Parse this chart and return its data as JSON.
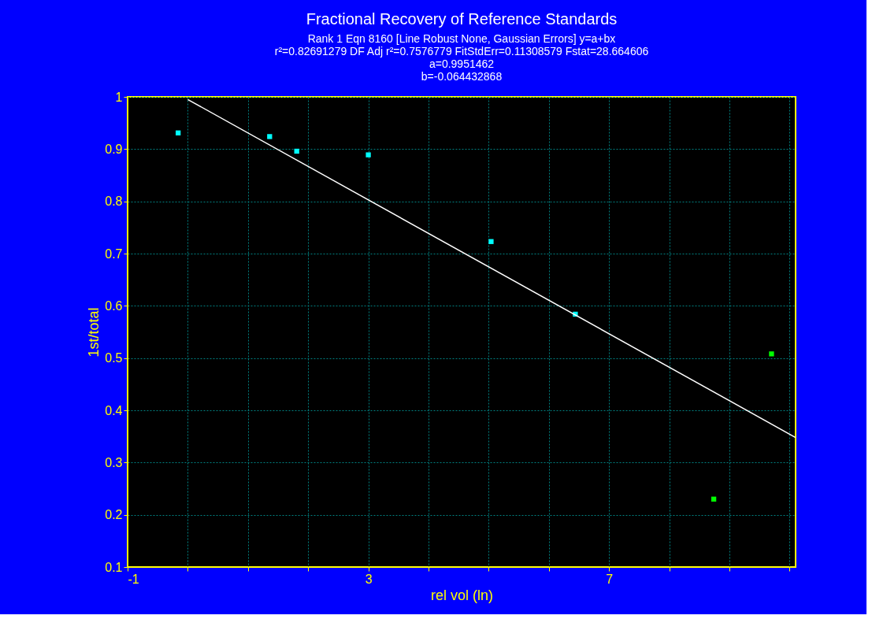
{
  "chart_data": {
    "type": "scatter",
    "title": "Fractional Recovery of Reference Standards",
    "subtitle": "Rank 1  Eqn 8160  [Line Robust None, Gaussian Errors] y=a+bx",
    "annotations": [
      "r²=0.82691279  DF Adj r²=0.7576779  FitStdErr=0.11308579  Fstat=28.664606",
      "a=0.9951462",
      "b=-0.064432868"
    ],
    "xlabel": "rel vol (ln)",
    "ylabel": "1st/total",
    "series": [
      {
        "color": "#00ffff",
        "x": [
          -0.16,
          1.36,
          1.81,
          3.0,
          5.04,
          6.44
        ],
        "values": [
          0.931,
          0.924,
          0.896,
          0.889,
          0.723,
          0.584
        ]
      },
      {
        "color": "#00ff00",
        "x": [
          8.74,
          9.7
        ],
        "values": [
          0.23,
          0.508
        ]
      },
      {
        "type": "line",
        "marker": "none",
        "color": "#ffffff",
        "x": [
          0,
          10.1
        ],
        "values": [
          0.995,
          0.348
        ]
      }
    ],
    "marker": "square",
    "xlim": [
      -1,
      10.1
    ],
    "ylim": [
      0.1,
      1
    ],
    "xticks": [
      -1,
      {
        "value": 0,
        "label": null
      },
      {
        "value": 1,
        "label": null
      },
      {
        "value": 2,
        "label": null
      },
      3,
      {
        "value": 4,
        "label": null
      },
      {
        "value": 5,
        "label": null
      },
      {
        "value": 6,
        "label": null
      },
      7,
      {
        "value": 8,
        "label": null
      },
      {
        "value": 9,
        "label": null
      },
      {
        "value": 10,
        "label": null
      }
    ],
    "yticks": [
      0.1,
      0.2,
      0.3,
      0.4,
      0.5,
      0.6,
      0.7,
      0.8,
      0.9,
      1
    ],
    "grid": true
  }
}
